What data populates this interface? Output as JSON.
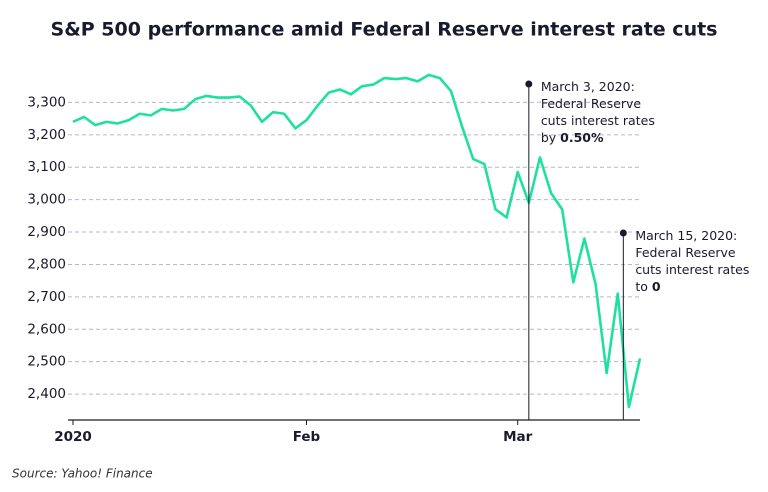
{
  "chart_data": {
    "type": "line",
    "title": "S&P 500 performance amid Federal Reserve interest rate cuts",
    "source": "Source: Yahoo! Finance",
    "categories": [
      "2020",
      null,
      null,
      null,
      null,
      null,
      null,
      null,
      null,
      null,
      null,
      null,
      null,
      null,
      null,
      null,
      null,
      null,
      null,
      null,
      null,
      "Feb",
      null,
      null,
      null,
      null,
      null,
      null,
      null,
      null,
      null,
      null,
      null,
      null,
      null,
      null,
      null,
      null,
      null,
      null,
      "Mar",
      null,
      null,
      null,
      null,
      null,
      null,
      null,
      null,
      null,
      null,
      null
    ],
    "series": [
      {
        "name": "S&P 500",
        "color": "#1fe0a0",
        "values": [
          3240,
          3255,
          3230,
          3240,
          3235,
          3245,
          3265,
          3260,
          3280,
          3275,
          3280,
          3310,
          3320,
          3315,
          3315,
          3318,
          3290,
          3240,
          3270,
          3265,
          3220,
          3245,
          3290,
          3330,
          3340,
          3325,
          3350,
          3355,
          3375,
          3372,
          3375,
          3365,
          3385,
          3375,
          3335,
          3225,
          3125,
          3110,
          2970,
          2945,
          3085,
          2990,
          3130,
          3020,
          2970,
          2745,
          2880,
          2740,
          2465,
          2710,
          2360,
          2510
        ]
      }
    ],
    "ylim": [
      2320,
      3400
    ],
    "yticks": [
      {
        "value": 2400,
        "label": "2,400"
      },
      {
        "value": 2500,
        "label": "2,500"
      },
      {
        "value": 2600,
        "label": "2,600"
      },
      {
        "value": 2700,
        "label": "2,700"
      },
      {
        "value": 2800,
        "label": "2,800"
      },
      {
        "value": 2900,
        "label": "2,900"
      },
      {
        "value": 3000,
        "label": "3,000"
      },
      {
        "value": 3100,
        "label": "3,100"
      },
      {
        "value": 3200,
        "label": "3,200"
      },
      {
        "value": 3300,
        "label": "3,300"
      }
    ],
    "grid": true,
    "annotations": [
      {
        "lines": [
          "March 3, 2020:",
          "Federal Reserve",
          "cuts interest rates",
          "by"
        ],
        "bold": "0.50%"
      },
      {
        "lines": [
          "March 15, 2020:",
          "Federal Reserve",
          "cuts interest rates",
          "to"
        ],
        "bold": "0"
      }
    ]
  }
}
